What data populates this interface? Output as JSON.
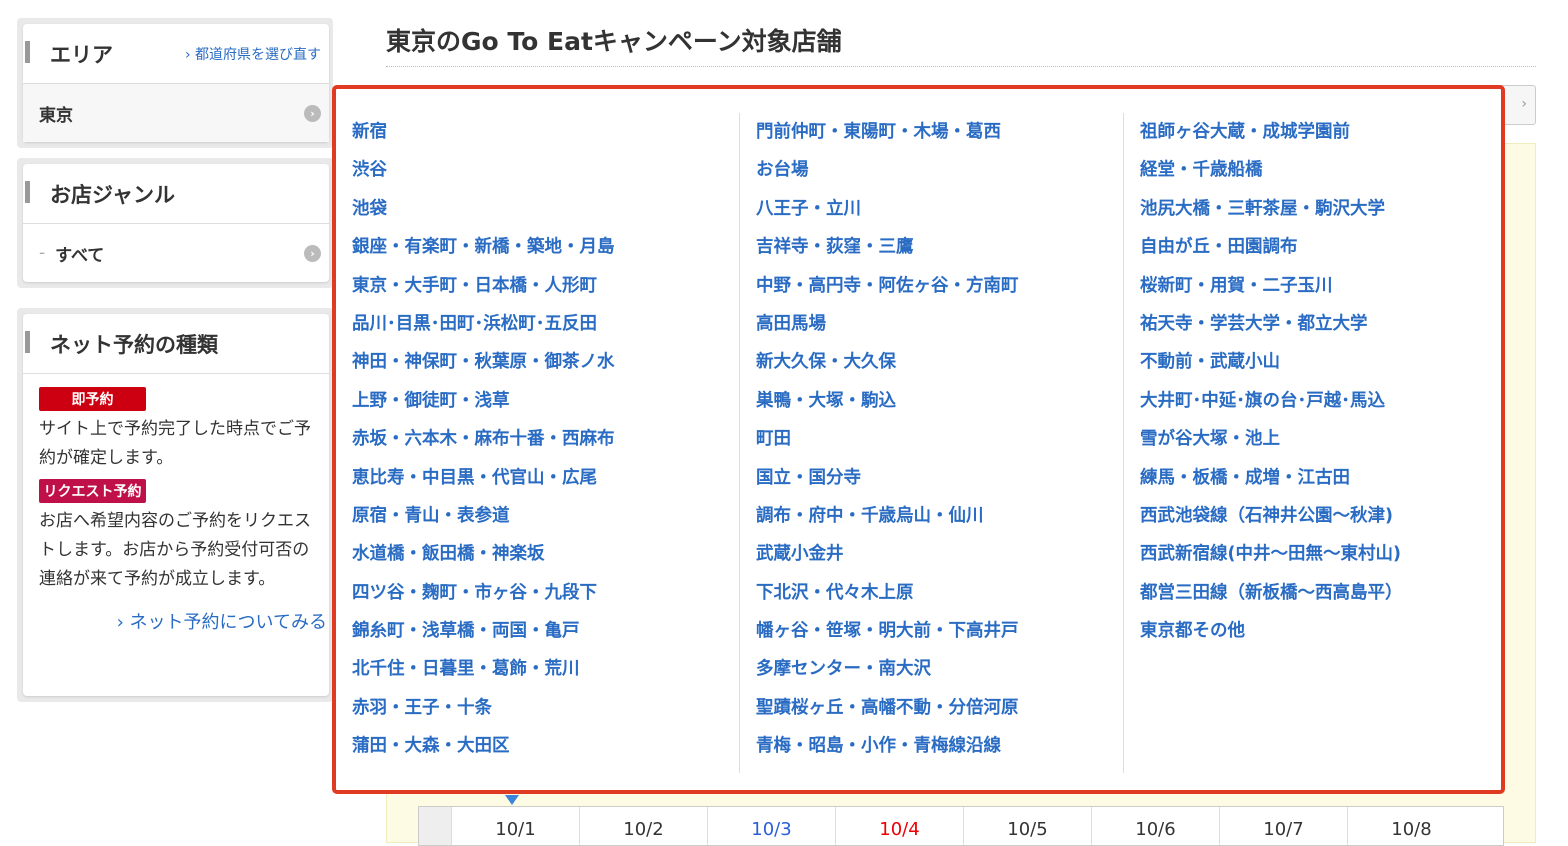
{
  "page_title": "東京のGo To Eatキャンペーン対象店舗",
  "sidebar": {
    "area": {
      "heading": "エリア",
      "reselect_link": "都道府県を選び直す",
      "selected": "東京"
    },
    "genre": {
      "heading": "お店ジャンル",
      "selected": "すべて"
    },
    "reservation": {
      "heading": "ネット予約の種類",
      "instant_badge": "即予約",
      "instant_desc": "サイト上で予約完了した時点でご予約が確定します。",
      "request_badge": "リクエスト予約",
      "request_desc": "お店へ希望内容のご予約をリクエストします。お店から予約受付可否の連絡が来て予約が成立します。",
      "more_link": "ネット予約についてみる"
    }
  },
  "colors": {
    "link": "#2a6cc4",
    "popup_border": "#e03a22",
    "instant_badge": "#cc0011",
    "request_badge": "#c0104a"
  },
  "area_popup": {
    "columns": [
      [
        "新宿",
        "渋谷",
        "池袋",
        "銀座・有楽町・新橋・築地・月島",
        "東京・大手町・日本橋・人形町",
        "品川･目黒･田町･浜松町･五反田",
        "神田・神保町・秋葉原・御茶ノ水",
        "上野・御徒町・浅草",
        "赤坂・六本木・麻布十番・西麻布",
        "恵比寿・中目黒・代官山・広尾",
        "原宿・青山・表参道",
        "水道橋・飯田橋・神楽坂",
        "四ツ谷・麹町・市ヶ谷・九段下",
        "錦糸町・浅草橋・両国・亀戸",
        "北千住・日暮里・葛飾・荒川",
        "赤羽・王子・十条",
        "蒲田・大森・大田区"
      ],
      [
        "門前仲町・東陽町・木場・葛西",
        "お台場",
        "八王子・立川",
        "吉祥寺・荻窪・三鷹",
        "中野・高円寺・阿佐ヶ谷・方南町",
        "高田馬場",
        "新大久保・大久保",
        "巣鴨・大塚・駒込",
        "町田",
        "国立・国分寺",
        "調布・府中・千歳烏山・仙川",
        "武蔵小金井",
        "下北沢・代々木上原",
        "幡ヶ谷・笹塚・明大前・下高井戸",
        "多摩センター・南大沢",
        "聖蹟桜ヶ丘・高幡不動・分倍河原",
        "青梅・昭島・小作・青梅線沿線"
      ],
      [
        "祖師ヶ谷大蔵・成城学園前",
        "経堂・千歳船橋",
        "池尻大橋・三軒茶屋・駒沢大学",
        "自由が丘・田園調布",
        "桜新町・用賀・二子玉川",
        "祐天寺・学芸大学・都立大学",
        "不動前・武蔵小山",
        "大井町･中延･旗の台･戸越･馬込",
        "雪が谷大塚・池上",
        "練馬・板橋・成増・江古田",
        "西武池袋線（石神井公園〜秋津)",
        "西武新宿線(中井〜田無〜東村山)",
        "都営三田線（新板橋〜西高島平）",
        "東京都その他"
      ]
    ]
  },
  "dates": [
    "10/1",
    "10/2",
    "10/3",
    "10/4",
    "10/5",
    "10/6",
    "10/7",
    "10/8"
  ]
}
